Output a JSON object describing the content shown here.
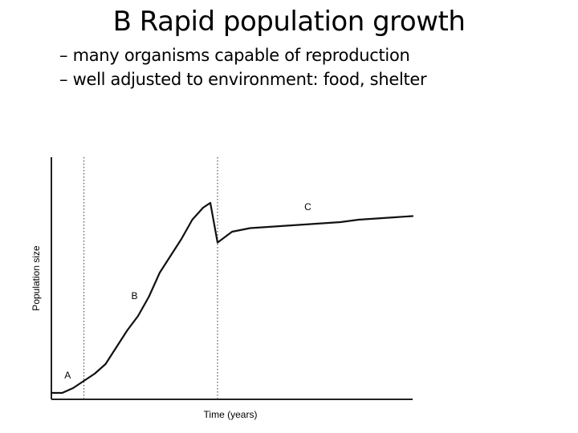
{
  "slide": {
    "title": "B Rapid population growth",
    "bullets": [
      "– many organisms capable of reproduction",
      "– well adjusted to environment: food, shelter"
    ]
  },
  "chart_data": {
    "type": "line",
    "title": "",
    "xlabel": "Time (years)",
    "ylabel": "Population size",
    "xlim": [
      0,
      100
    ],
    "ylim": [
      0,
      100
    ],
    "grid": false,
    "legend": "none",
    "phase_boundaries": [
      9,
      46
    ],
    "phase_labels": [
      {
        "label": "A",
        "x": 4.5,
        "y": 8
      },
      {
        "label": "B",
        "x": 23,
        "y": 41
      },
      {
        "label": "C",
        "x": 71,
        "y": 78
      }
    ],
    "series": [
      {
        "x": [
          0,
          3,
          6,
          9,
          12,
          15,
          18,
          21,
          24,
          27,
          30,
          33,
          36,
          39,
          42,
          44,
          46,
          50,
          55,
          60,
          65,
          70,
          75,
          80,
          85,
          90,
          95,
          100
        ],
        "y": [
          2,
          2,
          4,
          7,
          10,
          14,
          21,
          28,
          34,
          42,
          52,
          59,
          66,
          74,
          79,
          81,
          64.5,
          69,
          70.5,
          71,
          71.5,
          72,
          72.5,
          73,
          74,
          74.5,
          75,
          75.5
        ]
      }
    ],
    "line_color": "#111111"
  }
}
